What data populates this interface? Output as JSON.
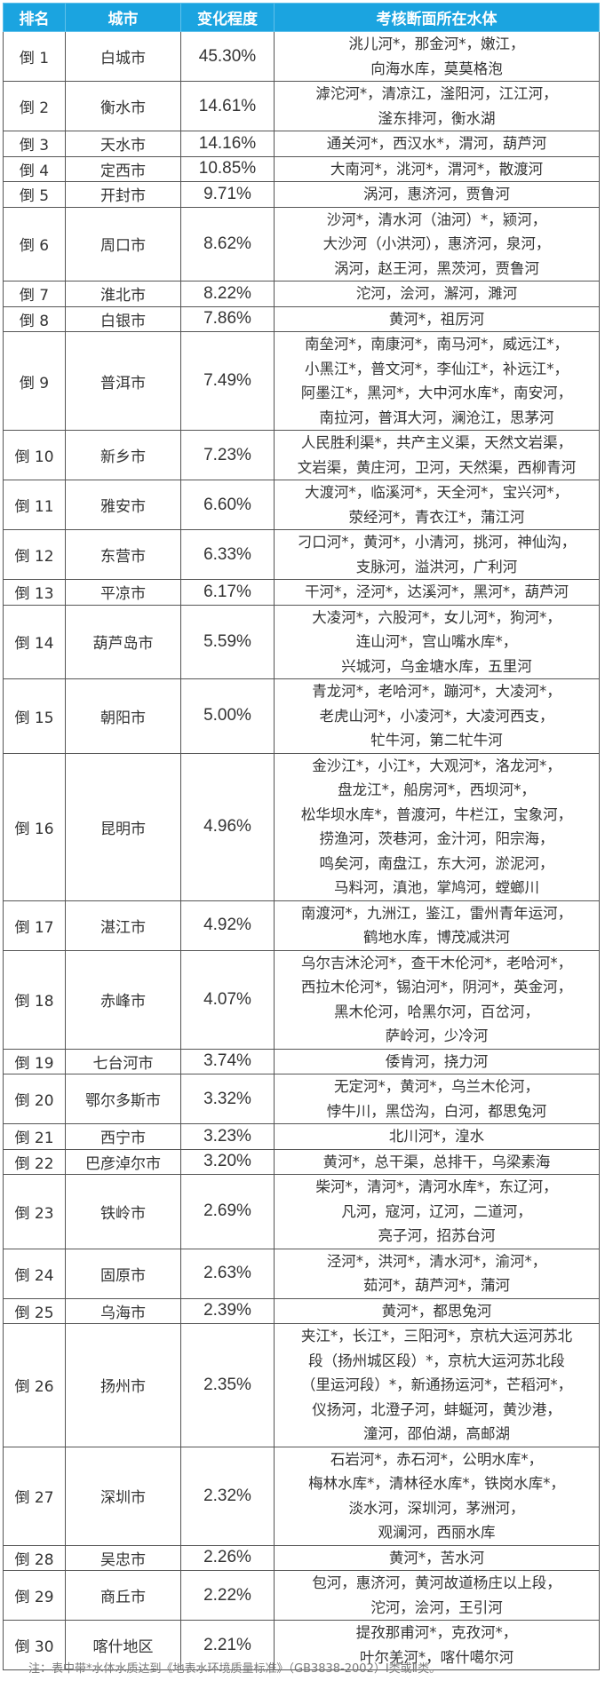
{
  "header": {
    "rank": "排名",
    "city": "城市",
    "change": "变化程度",
    "water": "考核断面所在水体"
  },
  "rows": [
    {
      "rank": "倒 1",
      "city": "白城市",
      "change": "45.30%",
      "water": [
        "洮儿河*，那金河*，嫩江，",
        "向海水库，莫莫格泡"
      ]
    },
    {
      "rank": "倒 2",
      "city": "衡水市",
      "change": "14.61%",
      "water": [
        "滹沱河*，清凉江，滏阳河，江江河，",
        "滏东排河，衡水湖"
      ]
    },
    {
      "rank": "倒 3",
      "city": "天水市",
      "change": "14.16%",
      "water": [
        "通关河*，西汉水*，渭河，葫芦河"
      ]
    },
    {
      "rank": "倒 4",
      "city": "定西市",
      "change": "10.85%",
      "water": [
        "大南河*，洮河*，渭河*，散渡河"
      ]
    },
    {
      "rank": "倒 5",
      "city": "开封市",
      "change": "9.71%",
      "water": [
        "涡河，惠济河，贾鲁河"
      ]
    },
    {
      "rank": "倒 6",
      "city": "周口市",
      "change": "8.62%",
      "water": [
        "沙河*，清水河（油河）*，颍河，",
        "大沙河（小洪河），惠济河，泉河，",
        "涡河，赵王河，黑茨河，贾鲁河"
      ]
    },
    {
      "rank": "倒 7",
      "city": "淮北市",
      "change": "8.22%",
      "water": [
        "沱河，浍河，澥河，濉河"
      ]
    },
    {
      "rank": "倒 8",
      "city": "白银市",
      "change": "7.86%",
      "water": [
        "黄河*，祖厉河"
      ]
    },
    {
      "rank": "倒 9",
      "city": "普洱市",
      "change": "7.49%",
      "water": [
        "南垒河*，南康河*，南马河*，威远江*，",
        "小黑江*，普文河*，李仙江*，补远江*，",
        "阿墨江*，黑河*，大中河水库*，南安河，",
        "南拉河，普洱大河，澜沧江，思茅河"
      ]
    },
    {
      "rank": "倒 10",
      "city": "新乡市",
      "change": "7.23%",
      "water": [
        "人民胜利渠*，共产主义渠，天然文岩渠，",
        "文岩渠，黄庄河，卫河，天然渠，西柳青河"
      ]
    },
    {
      "rank": "倒 11",
      "city": "雅安市",
      "change": "6.60%",
      "water": [
        "大渡河*，临溪河*，天全河*，宝兴河*，",
        "荥经河*，青衣江*，蒲江河"
      ]
    },
    {
      "rank": "倒 12",
      "city": "东营市",
      "change": "6.33%",
      "water": [
        "刁口河*，黄河*，小清河，挑河，神仙沟，",
        "支脉河，溢洪河，广利河"
      ]
    },
    {
      "rank": "倒 13",
      "city": "平凉市",
      "change": "6.17%",
      "water": [
        "干河*，泾河*，达溪河*，黑河*，葫芦河"
      ]
    },
    {
      "rank": "倒 14",
      "city": "葫芦岛市",
      "change": "5.59%",
      "water": [
        "大凌河*，六股河*，女儿河*，狗河*，",
        "连山河*，宫山嘴水库*，",
        "兴城河，乌金塘水库，五里河"
      ]
    },
    {
      "rank": "倒 15",
      "city": "朝阳市",
      "change": "5.00%",
      "water": [
        "青龙河*，老哈河*，蹦河*，大凌河*，",
        "老虎山河*，小凌河*，大凌河西支，",
        "牤牛河，第二牤牛河"
      ]
    },
    {
      "rank": "倒 16",
      "city": "昆明市",
      "change": "4.96%",
      "water": [
        "金沙江*，小江*，大观河*，洛龙河*，",
        "盘龙江*，船房河*，西坝河*，",
        "松华坝水库*，普渡河，牛栏江，宝象河，",
        "捞渔河，茨巷河，金汁河，阳宗海，",
        "鸣矣河，南盘江，东大河，淤泥河，",
        "马料河，滇池，掌鸠河，螳螂川"
      ]
    },
    {
      "rank": "倒 17",
      "city": "湛江市",
      "change": "4.92%",
      "water": [
        "南渡河*，九洲江，鉴江，雷州青年运河，",
        "鹤地水库，博茂减洪河"
      ]
    },
    {
      "rank": "倒 18",
      "city": "赤峰市",
      "change": "4.07%",
      "water": [
        "乌尔吉沐沦河*，查干木伦河*，老哈河*，",
        "西拉木伦河*，锡泊河*，阴河*，英金河，",
        "黑木伦河，哈黑尔河，百岔河，",
        "萨岭河，少冷河"
      ]
    },
    {
      "rank": "倒 19",
      "city": "七台河市",
      "change": "3.74%",
      "water": [
        "倭肯河，挠力河"
      ]
    },
    {
      "rank": "倒 20",
      "city": "鄂尔多斯市",
      "change": "3.32%",
      "water": [
        "无定河*，黄河*，乌兰木伦河，",
        "悖牛川，黑岱沟，白河，都思兔河"
      ]
    },
    {
      "rank": "倒 21",
      "city": "西宁市",
      "change": "3.23%",
      "water": [
        "北川河*，湟水"
      ]
    },
    {
      "rank": "倒 22",
      "city": "巴彦淖尔市",
      "change": "3.20%",
      "water": [
        "黄河*，总干渠，总排干，乌梁素海"
      ]
    },
    {
      "rank": "倒 23",
      "city": "铁岭市",
      "change": "2.69%",
      "water": [
        "柴河*，清河*，清河水库*，东辽河，",
        "凡河，寇河，辽河，二道河，",
        "亮子河，招苏台河"
      ]
    },
    {
      "rank": "倒 24",
      "city": "固原市",
      "change": "2.63%",
      "water": [
        "泾河*，洪河*，清水河*，渝河*，",
        "茹河*，葫芦河*，蒲河"
      ]
    },
    {
      "rank": "倒 25",
      "city": "乌海市",
      "change": "2.39%",
      "water": [
        "黄河*，都思兔河"
      ]
    },
    {
      "rank": "倒 26",
      "city": "扬州市",
      "change": "2.35%",
      "water": [
        "夹江*，长江*，三阳河*，京杭大运河苏北",
        "段（扬州城区段）*，京杭大运河苏北段",
        "（里运河段）*，新通扬运河*，芒稻河*，",
        "仪扬河，北澄子河，蚌蜒河，黄沙港，",
        "潼河，邵伯湖，高邮湖"
      ]
    },
    {
      "rank": "倒 27",
      "city": "深圳市",
      "change": "2.32%",
      "water": [
        "石岩河*，赤石河*，公明水库*，",
        "梅林水库*，清林径水库*，铁岗水库*，",
        "淡水河，深圳河，茅洲河，",
        "观澜河，西丽水库"
      ]
    },
    {
      "rank": "倒 28",
      "city": "吴忠市",
      "change": "2.26%",
      "water": [
        "黄河*，苦水河"
      ]
    },
    {
      "rank": "倒 29",
      "city": "商丘市",
      "change": "2.22%",
      "water": [
        "包河，惠济河，黄河故道杨庄以上段，",
        "沱河，浍河，王引河"
      ]
    },
    {
      "rank": "倒 30",
      "city": "喀什地区",
      "change": "2.21%",
      "water": [
        "提孜那甫河*，克孜河*，",
        "叶尔羌河*，喀什噶尔河"
      ]
    }
  ],
  "note": "注：表中带*水体水质达到《地表水环境质量标准》（GB3838-2002）Ⅰ类或Ⅱ类。",
  "colors": {
    "header_bg": "#1ba4e0",
    "header_text": "#ffffff",
    "border": "#555555"
  }
}
